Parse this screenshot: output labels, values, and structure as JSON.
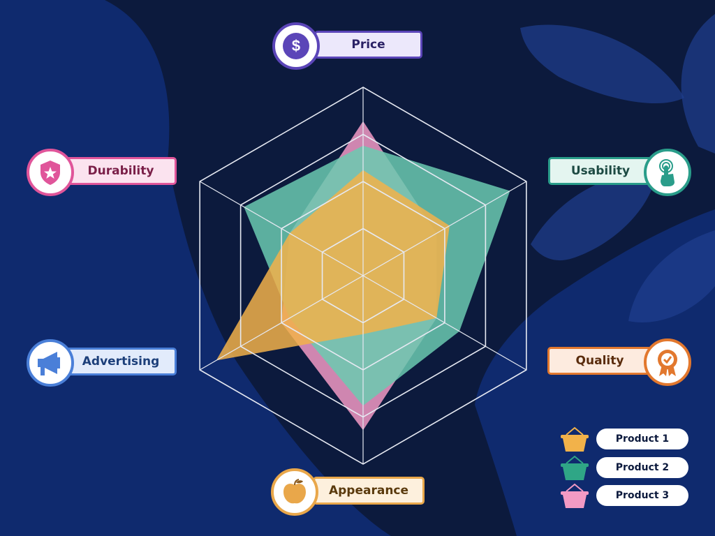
{
  "chart_data": {
    "type": "radar",
    "axes": [
      "Price",
      "Usability",
      "Quality",
      "Appearance",
      "Advertising",
      "Durability"
    ],
    "max": 10,
    "rings": 4,
    "series": [
      {
        "name": "Product 3",
        "color": "#f29ac4",
        "values": [
          8.2,
          4.5,
          4.5,
          8.2,
          5.0,
          4.5
        ]
      },
      {
        "name": "Product 2",
        "color": "#6bcab0",
        "values": [
          6.9,
          9.0,
          5.9,
          6.9,
          4.5,
          7.3
        ]
      },
      {
        "name": "Product 1",
        "color": "#f2b24a",
        "values": [
          5.6,
          5.3,
          4.5,
          3.1,
          9.0,
          4.5
        ]
      }
    ]
  },
  "axis_labels": {
    "price": {
      "label": "Price",
      "icon": "dollar-icon",
      "color": "#5b45b8",
      "pill_bg": "#ece8fb"
    },
    "usability": {
      "label": "Usability",
      "icon": "touch-icon",
      "color": "#2a9d8a",
      "pill_bg": "#e4f5f0"
    },
    "quality": {
      "label": "Quality",
      "icon": "award-icon",
      "color": "#e2782e",
      "pill_bg": "#fdebdf"
    },
    "appearance": {
      "label": "Appearance",
      "icon": "apple-icon",
      "color": "#e9a74a",
      "pill_bg": "#fdf0dd"
    },
    "advertising": {
      "label": "Advertising",
      "icon": "megaphone-icon",
      "color": "#4a7fd8",
      "pill_bg": "#e2ebfb"
    },
    "durability": {
      "label": "Durability",
      "icon": "shield-icon",
      "color": "#e0559a",
      "pill_bg": "#fbe3ef"
    }
  },
  "legend": [
    {
      "label": "Product 1",
      "color": "#f2b24a"
    },
    {
      "label": "Product 2",
      "color": "#2fa686"
    },
    {
      "label": "Product 3",
      "color": "#f29ac4"
    }
  ]
}
